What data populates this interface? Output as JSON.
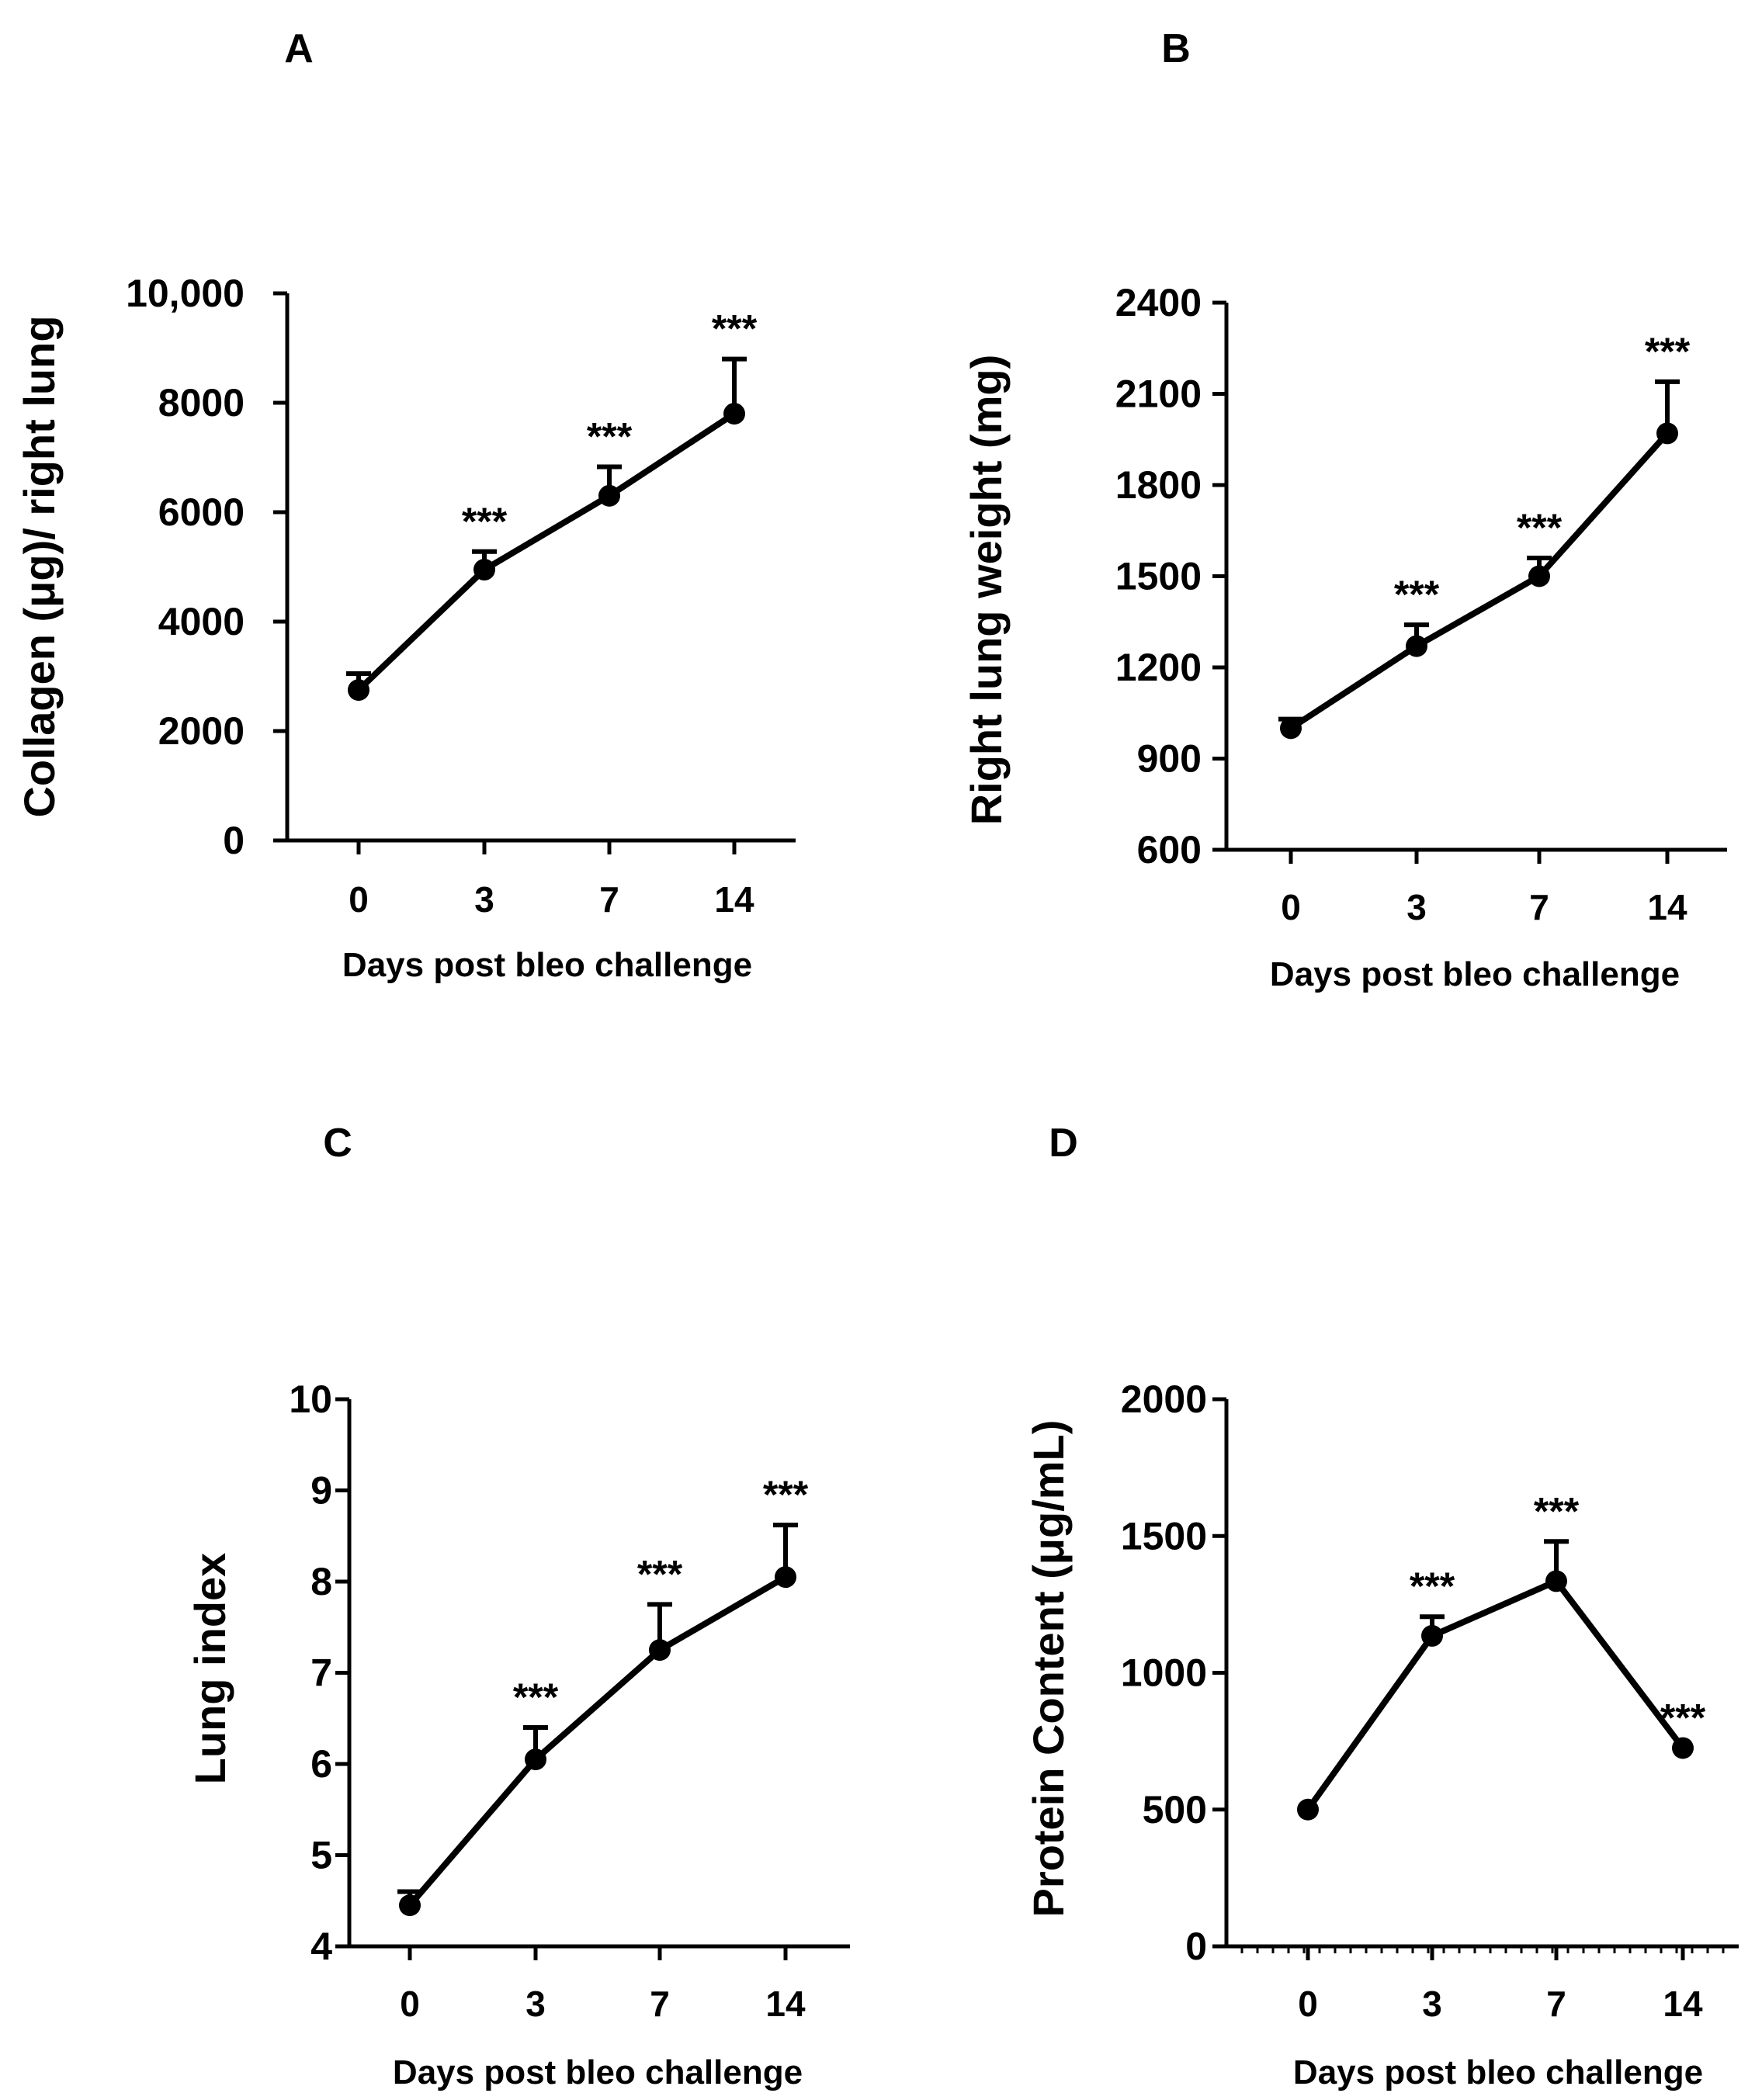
{
  "chart_data": [
    {
      "type": "line",
      "panel": "A",
      "title": "",
      "xlabel": "Days post bleo challenge",
      "ylabel": "Collagen (μg)/ right lung",
      "categories": [
        "0",
        "3",
        "7",
        "14"
      ],
      "values": [
        2750,
        4950,
        6300,
        7800
      ],
      "errors_upper": [
        300,
        330,
        530,
        1000
      ],
      "significance": [
        "",
        "***",
        "***",
        "***"
      ],
      "ylim": [
        0,
        10000
      ],
      "yticks": [
        0,
        2000,
        4000,
        6000,
        8000,
        10000
      ],
      "ytick_labels": [
        "0",
        "2000",
        "4000",
        "6000",
        "8000",
        "10,000"
      ],
      "grid": false
    },
    {
      "type": "line",
      "panel": "B",
      "title": "",
      "xlabel": "Days post bleo challenge",
      "ylabel": "Right lung weight (mg)",
      "categories": [
        "0",
        "3",
        "7",
        "14"
      ],
      "values": [
        1000,
        1270,
        1500,
        1970
      ],
      "errors_upper": [
        30,
        70,
        60,
        170
      ],
      "significance": [
        "",
        "***",
        "***",
        "***"
      ],
      "ylim": [
        600,
        2400
      ],
      "yticks": [
        600,
        900,
        1200,
        1500,
        1800,
        2100,
        2400
      ],
      "ytick_labels": [
        "600",
        "900",
        "1200",
        "1500",
        "1800",
        "2100",
        "2400"
      ],
      "grid": false
    },
    {
      "type": "line",
      "panel": "C",
      "title": "",
      "xlabel": "Days post bleo challenge",
      "ylabel": "Lung index",
      "categories": [
        "0",
        "3",
        "7",
        "14"
      ],
      "values": [
        4.45,
        6.05,
        7.25,
        8.05
      ],
      "errors_upper": [
        0.15,
        0.35,
        0.5,
        0.57
      ],
      "significance": [
        "",
        "***",
        "***",
        "***"
      ],
      "ylim": [
        4,
        10
      ],
      "yticks": [
        4,
        5,
        6,
        7,
        8,
        9,
        10
      ],
      "ytick_labels": [
        "4",
        "5",
        "6",
        "7",
        "8",
        "9",
        "10"
      ],
      "grid": false
    },
    {
      "type": "line",
      "panel": "D",
      "title": "",
      "xlabel": "Days post bleo challenge",
      "ylabel": "Protein Content (μg/mL)",
      "categories": [
        "0",
        "3",
        "7",
        "14"
      ],
      "values": [
        500,
        1135,
        1335,
        725
      ],
      "errors_upper": [
        0,
        70,
        145,
        0
      ],
      "significance": [
        "",
        "***",
        "***",
        "***"
      ],
      "ylim": [
        0,
        2000
      ],
      "yticks": [
        0,
        500,
        1000,
        1500,
        2000
      ],
      "ytick_labels": [
        "0",
        "500",
        "1000",
        "1500",
        "2000"
      ],
      "minor_ticks": true,
      "grid": false
    }
  ]
}
